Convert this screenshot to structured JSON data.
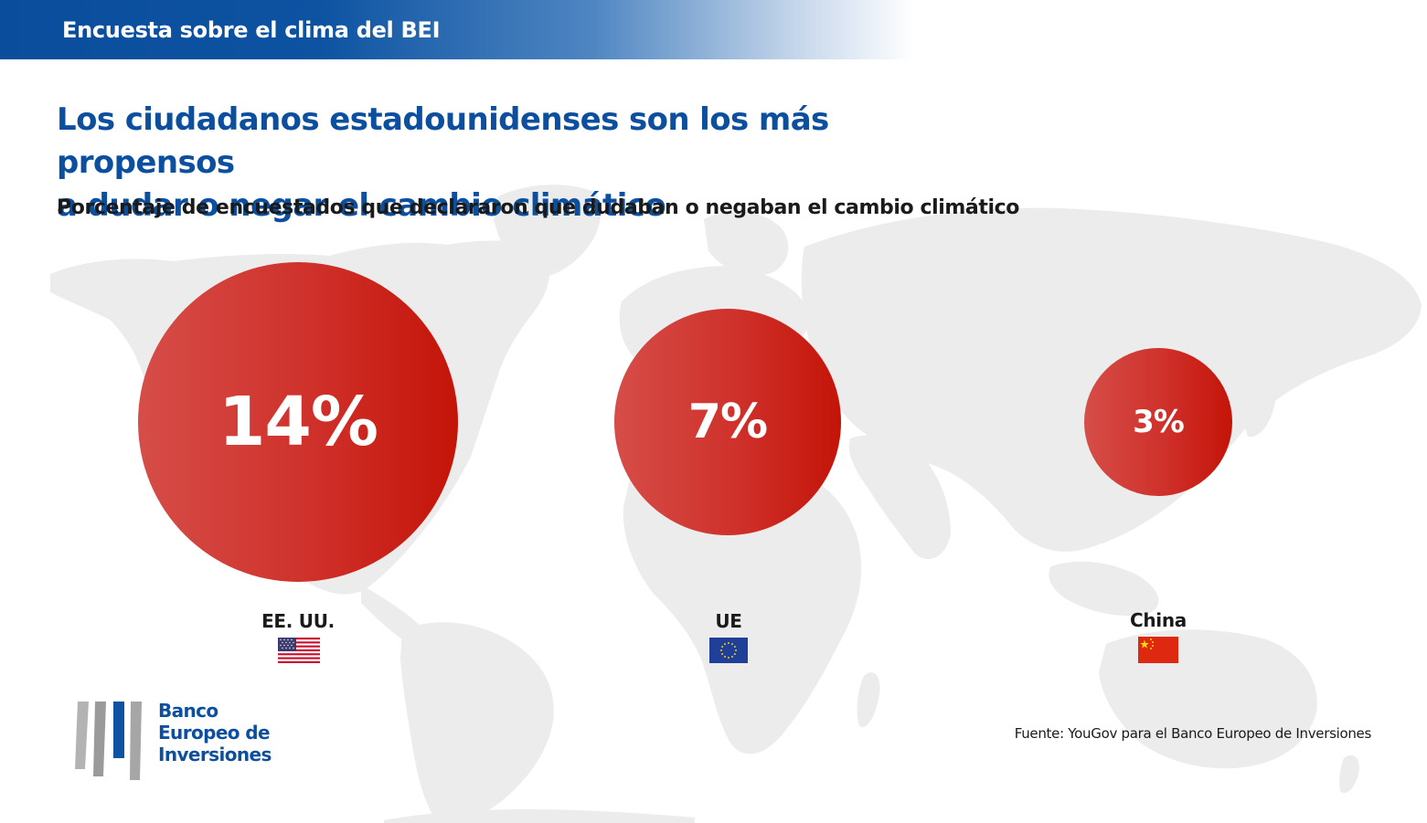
{
  "header": {
    "title": "Encuesta sobre el clima del BEI"
  },
  "colors": {
    "brand_blue": "#0d4f9f",
    "bubble_red": "#c41408",
    "map_gray": "#ececec"
  },
  "icons": {
    "map": "world-map-icon",
    "logo": "eib-logo-icon",
    "flags": [
      "us-flag-icon",
      "eu-flag-icon",
      "china-flag-icon"
    ]
  },
  "chart_data": {
    "type": "bubble",
    "title_line1": "Los ciudadanos estadounidenses son los más propensos",
    "title_line2": "a dudar o negar el cambio climático",
    "subtitle": "Porcentaje de encuestados que declararon que dudaban o negaban el cambio climático",
    "categories": [
      "EE. UU.",
      "UE",
      "China"
    ],
    "values": [
      14,
      7,
      3
    ],
    "unit": "%",
    "value_labels": [
      "14%",
      "7%",
      "3%"
    ],
    "source": "Fuente: YouGov para el Banco Europeo de Inversiones"
  },
  "footer": {
    "logo_line1": "Banco",
    "logo_line2": "Europeo de",
    "logo_line3": "Inversiones"
  }
}
